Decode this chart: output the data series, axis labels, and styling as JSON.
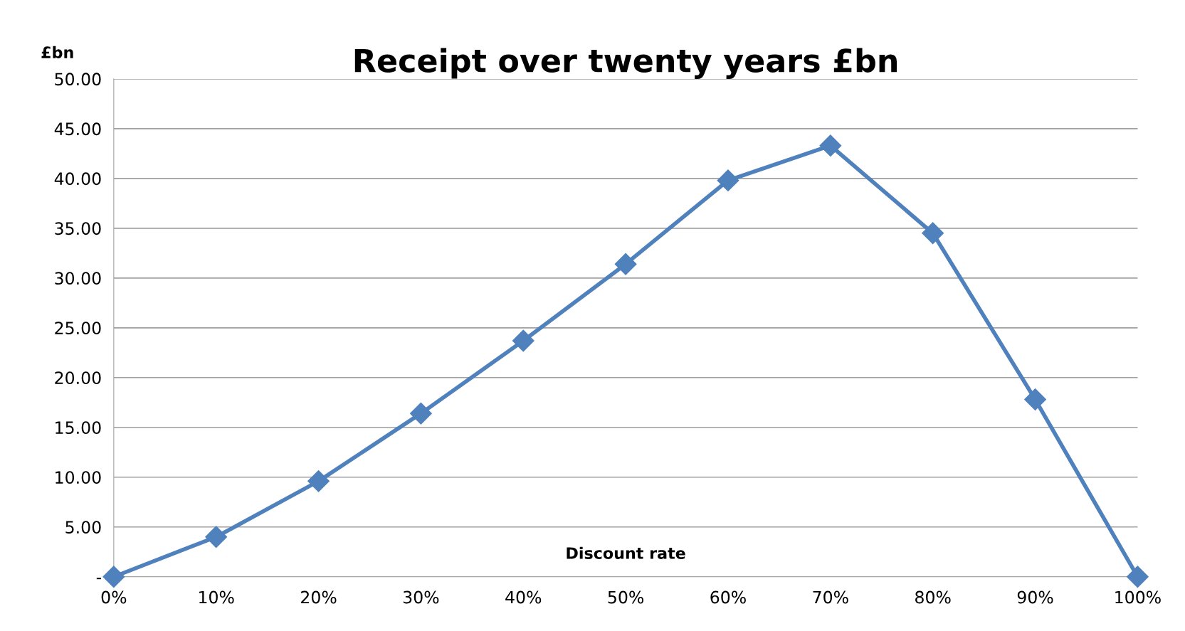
{
  "chart_data": {
    "type": "line",
    "title": "Receipt over twenty years £bn",
    "xlabel": "Discount rate",
    "ylabel": "£bn",
    "categories": [
      "0%",
      "10%",
      "20%",
      "30%",
      "40%",
      "50%",
      "60%",
      "70%",
      "80%",
      "90%",
      "100%"
    ],
    "series": [
      {
        "color": "#4f81bd",
        "values": [
          0,
          4.0,
          9.6,
          16.4,
          23.7,
          31.4,
          39.8,
          43.3,
          34.5,
          17.8,
          0
        ]
      }
    ],
    "ylim": [
      0,
      50
    ],
    "yticks": [
      {
        "value": 0,
        "label": "-"
      },
      {
        "value": 5,
        "label": "5.00"
      },
      {
        "value": 10,
        "label": "10.00"
      },
      {
        "value": 15,
        "label": "15.00"
      },
      {
        "value": 20,
        "label": "20.00"
      },
      {
        "value": 25,
        "label": "25.00"
      },
      {
        "value": 30,
        "label": "30.00"
      },
      {
        "value": 35,
        "label": "35.00"
      },
      {
        "value": 40,
        "label": "40.00"
      },
      {
        "value": 45,
        "label": "45.00"
      },
      {
        "value": 50,
        "label": "50.00"
      }
    ],
    "grid": "y",
    "marker": "diamond",
    "line_style": "solid",
    "legend": false
  }
}
